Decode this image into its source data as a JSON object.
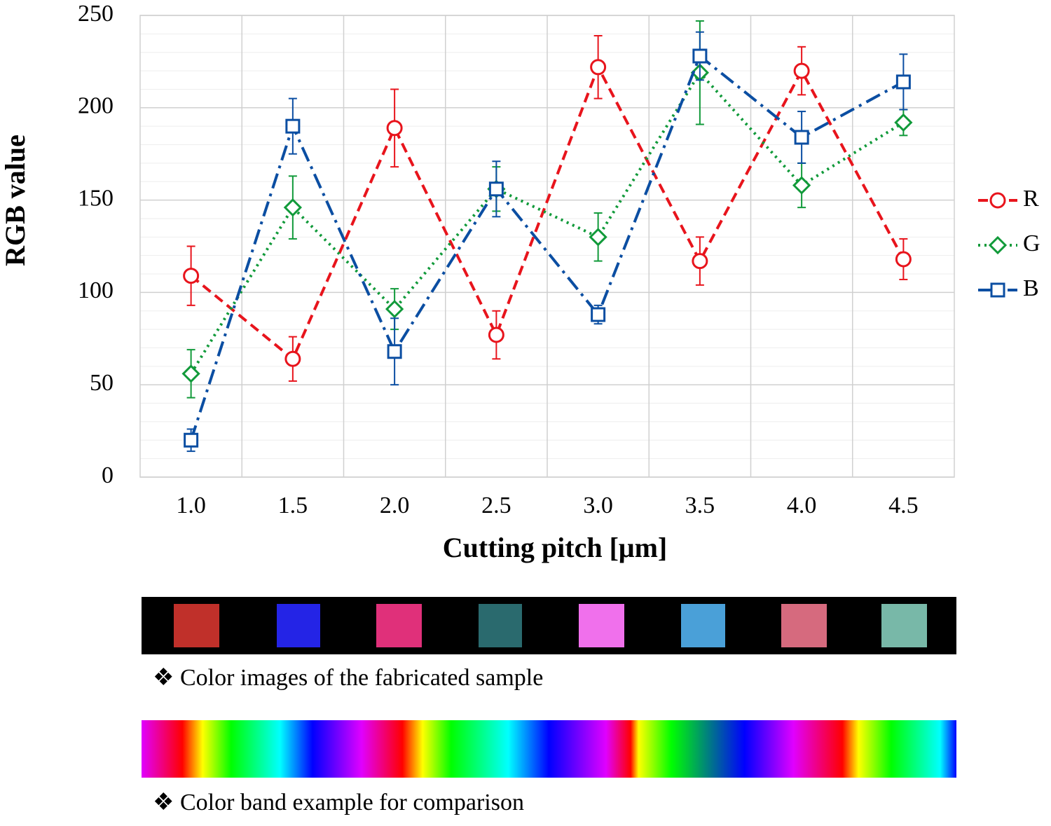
{
  "chart_data": {
    "type": "line",
    "x_label": "Cutting pitch [μm]",
    "y_label": "RGB value",
    "categories": [
      "1.0",
      "1.5",
      "2.0",
      "2.5",
      "3.0",
      "3.5",
      "4.0",
      "4.5"
    ],
    "series": [
      {
        "name": "R",
        "color": "#e8141c",
        "line_style": "dashed",
        "marker": "circle",
        "values": [
          109,
          64,
          189,
          77,
          222,
          117,
          220,
          118
        ],
        "errors": [
          16,
          12,
          21,
          13,
          17,
          13,
          13,
          11
        ]
      },
      {
        "name": "G",
        "color": "#119a3a",
        "line_style": "dotted",
        "marker": "diamond",
        "values": [
          56,
          146,
          91,
          156,
          130,
          219,
          158,
          192
        ],
        "errors": [
          13,
          17,
          11,
          12,
          13,
          28,
          12,
          7
        ]
      },
      {
        "name": "B",
        "color": "#0b4ea2",
        "line_style": "dashdot",
        "marker": "square",
        "values": [
          20,
          190,
          68,
          156,
          88,
          228,
          184,
          214
        ],
        "errors": [
          6,
          15,
          18,
          15,
          5,
          13,
          14,
          15
        ]
      }
    ],
    "ylim": [
      0,
      250
    ],
    "yticks": [
      0,
      50,
      100,
      150,
      200,
      250
    ],
    "grid": true,
    "minor_grid_step": 10,
    "legend": "right",
    "annotations": [
      "❖ Color images of the fabricated sample",
      "❖ Color band example for comparison"
    ]
  }
}
